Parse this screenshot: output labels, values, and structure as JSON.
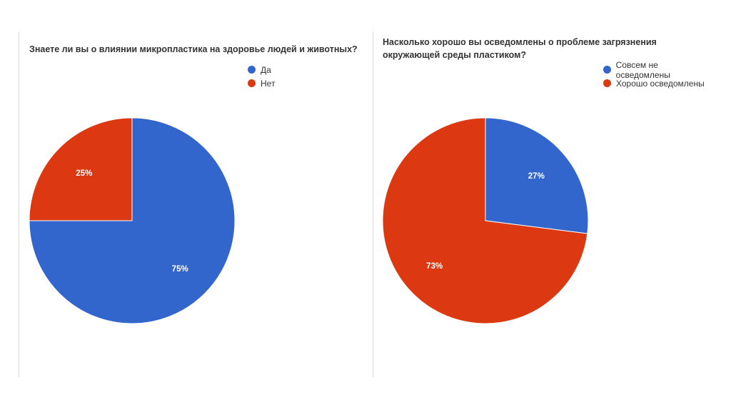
{
  "chart_data": [
    {
      "type": "pie",
      "title": "Знаете ли вы о влиянии микропластика на здоровье людей и животных?",
      "categories": [
        "Да",
        "Нет"
      ],
      "values": [
        75,
        25
      ],
      "labels": [
        "75%",
        "25%"
      ],
      "colors": [
        "#3366cc",
        "#dc3912"
      ],
      "legend": "top-right"
    },
    {
      "type": "pie",
      "title": "Насколько хорошо вы осведомлены о проблеме загрязнения окружающей среды пластиком?",
      "categories": [
        "Совсем не осведомлены",
        "Хорошо осведомлены"
      ],
      "values": [
        27,
        73
      ],
      "labels": [
        "27%",
        "73%"
      ],
      "colors": [
        "#3366cc",
        "#dc3912"
      ],
      "legend": "top-right"
    }
  ]
}
